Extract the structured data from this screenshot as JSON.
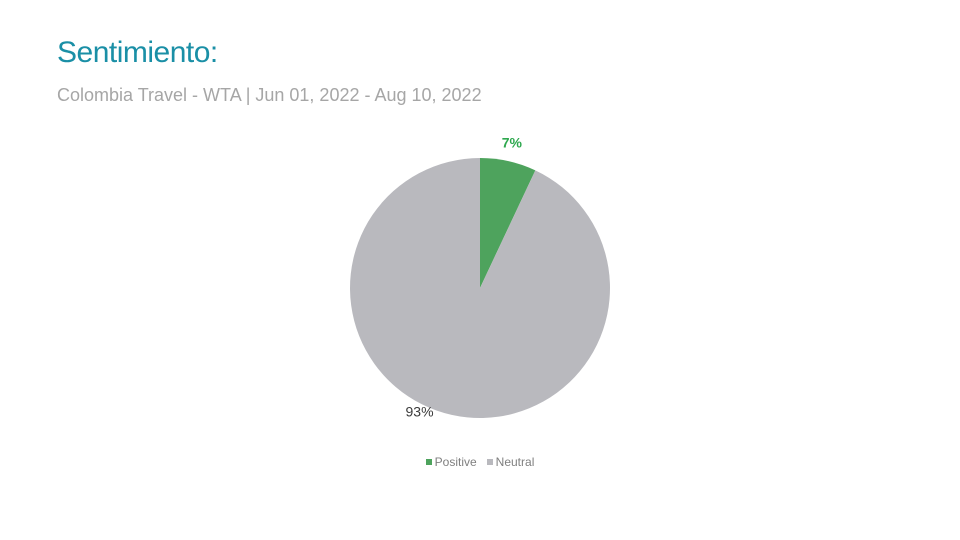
{
  "header": {
    "title": "Sentimiento:",
    "subtitle": "Colombia Travel - WTA | Jun 01, 2022 - Aug 10, 2022"
  },
  "colors": {
    "title": "#1a8fa6",
    "positive": "#4ea35d",
    "neutral": "#b9b9be",
    "positive_label": "#2fa84f",
    "neutral_label": "#3a3a3a"
  },
  "chart_data": {
    "type": "pie",
    "categories": [
      "Positive",
      "Neutral"
    ],
    "values": [
      7,
      93
    ],
    "value_labels": [
      "7%",
      "93%"
    ],
    "legend": "bottom",
    "start_angle": "12 o'clock, clockwise"
  }
}
